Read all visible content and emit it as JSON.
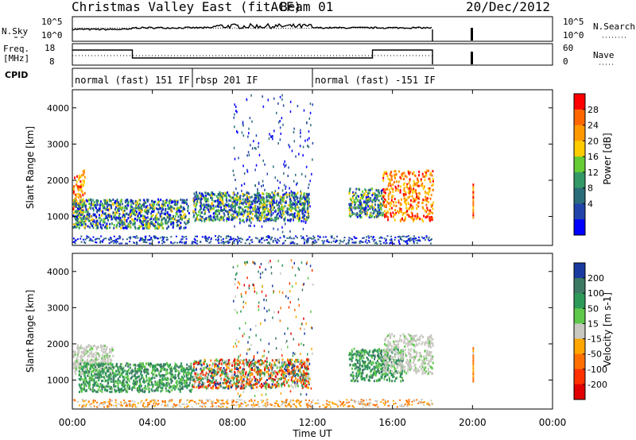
{
  "header": {
    "title": "Christmas Valley East (fitACF)",
    "beam": "Beam 01",
    "date": "20/Dec/2012"
  },
  "labels": {
    "nsky": "N.Sky",
    "freq_line1": "Freq.",
    "freq_line2": "[MHz]",
    "cpid": "CPID",
    "nsearch": "N.Search",
    "nave": "Nave"
  },
  "noise_axis": {
    "left": [
      "10^5",
      "10^0"
    ],
    "right": [
      "10^5",
      "10^0"
    ]
  },
  "freq_axis": {
    "left": [
      "18",
      "8"
    ],
    "right": [
      "60",
      "0"
    ]
  },
  "cpid_segments": [
    {
      "label": "normal (fast) 151 IF",
      "start": 0,
      "end": 6
    },
    {
      "label": "rbsp 201 IF",
      "start": 6,
      "end": 12
    },
    {
      "label": "normal (fast) -151 IF",
      "start": 12,
      "end": 18
    }
  ],
  "power_colorbar": {
    "title": "Power [dB]",
    "ticks": [
      "28",
      "24",
      "20",
      "16",
      "12",
      "8",
      "4"
    ],
    "colors": [
      "#ff0000",
      "#ff6600",
      "#ff9900",
      "#ffcc00",
      "#66cc33",
      "#339966",
      "#2a6c7a",
      "#2244aa",
      "#0000ff"
    ]
  },
  "velocity_colorbar": {
    "title": "Velocity [m s-1]",
    "ticks": [
      "200",
      "100",
      "50",
      "15",
      "-15",
      "-50",
      "-100",
      "-200"
    ],
    "colors": [
      "#1a3aa0",
      "#3c7a64",
      "#2e9a5a",
      "#5ec84a",
      "#c8c8c0",
      "#ffa600",
      "#ff7000",
      "#ff3000",
      "#e00000"
    ]
  },
  "chart_data": {
    "type": "heatmap",
    "x_ticks": [
      "00:00",
      "04:00",
      "08:00",
      "12:00",
      "16:00",
      "20:00",
      "00:00"
    ],
    "xlabel": "Time UT",
    "ylabel": "Slant Range [km]",
    "y_ticks": [
      "4000",
      "3000",
      "2000",
      "1000"
    ],
    "ylim": [
      200,
      4500
    ],
    "xlim_hours": [
      0,
      24
    ],
    "data_end_hour": 18,
    "isolated_burst_hour": 20,
    "freq_steps": [
      {
        "start": 0,
        "end": 3,
        "level": "high"
      },
      {
        "start": 3,
        "end": 15,
        "level": "low"
      },
      {
        "start": 15,
        "end": 18,
        "level": "high"
      }
    ],
    "power_echo_regions": [
      {
        "t0": 0.0,
        "t1": 0.6,
        "r0": 1100,
        "r1": 2300,
        "level": "high"
      },
      {
        "t0": 0.0,
        "t1": 5.8,
        "r0": 700,
        "r1": 1500,
        "level": "mid"
      },
      {
        "t0": 6.0,
        "t1": 11.8,
        "r0": 900,
        "r1": 1700,
        "level": "mid"
      },
      {
        "t0": 13.8,
        "t1": 15.5,
        "r0": 1000,
        "r1": 1800,
        "level": "mid"
      },
      {
        "t0": 15.5,
        "t1": 18.0,
        "r0": 900,
        "r1": 2300,
        "level": "high"
      }
    ],
    "velocity_echo_regions": [
      {
        "t0": 0.0,
        "t1": 2.0,
        "r0": 1200,
        "r1": 2000,
        "v": "near-zero"
      },
      {
        "t0": 0.3,
        "t1": 6.0,
        "r0": 700,
        "r1": 1500,
        "v": "positive"
      },
      {
        "t0": 6.0,
        "t1": 11.8,
        "r0": 800,
        "r1": 1600,
        "v": "mixed"
      },
      {
        "t0": 13.8,
        "t1": 16.5,
        "r0": 1000,
        "r1": 1900,
        "v": "positive"
      },
      {
        "t0": 15.5,
        "t1": 18.0,
        "r0": 1200,
        "r1": 2300,
        "v": "near-zero"
      }
    ]
  }
}
